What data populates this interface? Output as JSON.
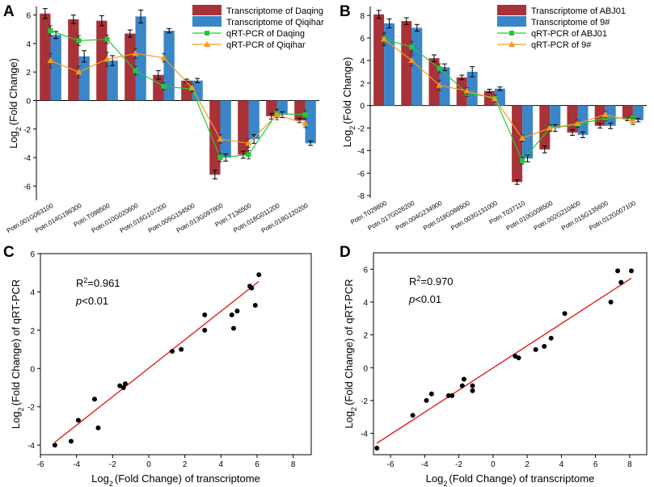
{
  "panels": {
    "A": {
      "letter": "A"
    },
    "B": {
      "letter": "B"
    },
    "C": {
      "letter": "C"
    },
    "D": {
      "letter": "D"
    }
  },
  "colors": {
    "transcriptome_red": "#a83238",
    "transcriptome_blue": "#3a86c8",
    "qrt_green": "#22c93a",
    "qrt_orange": "#f59a1e",
    "fit_line": "#e02020"
  },
  "chart_data": [
    {
      "id": "A",
      "type": "bar",
      "ylabel": "Log2 (Fold Change)",
      "ylabel_base": "Log",
      "ylabel_sub": "2",
      "ylabel_rest": "(Fold Change)",
      "ylim": [
        -7,
        6.6
      ],
      "yticks": [
        -6,
        -4,
        -2,
        0,
        2,
        4,
        6
      ],
      "categories": [
        "Potri.001G063100",
        "Potri.014G198300",
        "Potri.T098500",
        "Potri.010G020600",
        "Potri.016G107200",
        "Potri.005G154500",
        "Potri.013G097800",
        "Potri.T136500",
        "Potri.018G011200",
        "Potri.018G120200"
      ],
      "series": [
        {
          "name": "Transcriptome of Daqing",
          "kind": "bar",
          "color": "#a83238",
          "values": [
            6.1,
            5.7,
            5.6,
            4.7,
            1.8,
            1.4,
            -5.2,
            -3.8,
            -1.1,
            -1.4
          ],
          "errors": [
            0.35,
            0.3,
            0.35,
            0.25,
            0.3,
            0.1,
            0.3,
            0.25,
            0.2,
            0.15
          ]
        },
        {
          "name": "Transcriptome of Qiqihar",
          "kind": "bar",
          "color": "#3a86c8",
          "values": [
            4.6,
            3.1,
            2.8,
            5.9,
            4.9,
            1.4,
            -4.0,
            -2.7,
            -1.0,
            -3.0
          ],
          "errors": [
            0.25,
            0.4,
            0.35,
            0.45,
            0.15,
            0.15,
            0.25,
            0.3,
            0.2,
            0.15
          ]
        },
        {
          "name": "qRT-PCR of Daqing",
          "kind": "line",
          "color": "#22c93a",
          "marker": "square",
          "values": [
            4.9,
            4.2,
            4.3,
            2.1,
            1.0,
            0.8,
            -4.0,
            -3.8,
            -0.9,
            -1.0
          ],
          "errors": [
            0.35,
            0.35,
            0.3,
            0.3,
            0.25,
            0.2,
            0.3,
            0.3,
            0.3,
            0.3
          ]
        },
        {
          "name": "qRT-PCR of Qiqihar",
          "kind": "line",
          "color": "#f59a1e",
          "marker": "triangle",
          "values": [
            2.8,
            2.0,
            2.9,
            3.3,
            3.0,
            0.9,
            -2.7,
            -3.0,
            -1.0,
            -1.6
          ],
          "errors": [
            0.5,
            0.4,
            0.5,
            0.35,
            0.3,
            0.25,
            0.3,
            0.3,
            0.35,
            0.3
          ]
        }
      ]
    },
    {
      "id": "B",
      "type": "bar",
      "ylabel": "Log2 (Fold Change)",
      "ylabel_base": "Log",
      "ylabel_sub": "2",
      "ylabel_rest": "(Fold Change)",
      "ylim": [
        -8.2,
        8.8
      ],
      "yticks": [
        -8,
        -6,
        -4,
        -2,
        0,
        2,
        4,
        6,
        8
      ],
      "categories": [
        "Potri.T029800",
        "Potri.017G028200",
        "Potri.004G234900",
        "Potri.018G098500",
        "Potri.003G131000",
        "Potri.T037110",
        "Potri.010G008500",
        "Potri.002G210400",
        "Potri.015G135600",
        "Potri.012G007100"
      ],
      "series": [
        {
          "name": "Transcriptome of ABJ01",
          "kind": "bar",
          "color": "#a83238",
          "values": [
            8.1,
            7.5,
            4.2,
            2.5,
            1.3,
            -6.8,
            -3.9,
            -2.4,
            -1.8,
            -1.2
          ],
          "errors": [
            0.35,
            0.3,
            0.3,
            0.2,
            0.15,
            0.2,
            0.3,
            0.25,
            0.2,
            0.15
          ]
        },
        {
          "name": "Transcriptome of 9#",
          "kind": "bar",
          "color": "#3a86c8",
          "values": [
            7.3,
            6.9,
            3.4,
            3.0,
            1.5,
            -4.7,
            -2.0,
            -2.6,
            -1.8,
            -1.3
          ],
          "errors": [
            0.4,
            0.3,
            0.3,
            0.45,
            0.15,
            0.3,
            0.3,
            0.25,
            0.25,
            0.15
          ]
        },
        {
          "name": "qRT-PCR of ABJ01",
          "kind": "line",
          "color": "#22c93a",
          "marker": "square",
          "values": [
            5.9,
            5.2,
            3.3,
            1.1,
            0.7,
            -4.9,
            -2.0,
            -1.7,
            -1.1,
            -1.1
          ],
          "errors": [
            0.5,
            0.5,
            0.4,
            0.3,
            0.25,
            0.3,
            0.25,
            0.25,
            0.25,
            0.2
          ]
        },
        {
          "name": "qRT-PCR of 9#",
          "kind": "line",
          "color": "#f59a1e",
          "marker": "triangle",
          "values": [
            5.9,
            4.0,
            1.8,
            1.3,
            0.6,
            -2.9,
            -2.0,
            -1.6,
            -0.8,
            -1.4
          ],
          "errors": [
            0.6,
            0.5,
            0.45,
            0.3,
            0.3,
            0.3,
            0.3,
            0.3,
            0.3,
            0.3
          ]
        }
      ]
    },
    {
      "id": "C",
      "type": "scatter",
      "xlabel": "Log2 (Fold Change) of transcriptome",
      "xlabel_base": "Log",
      "xlabel_sub": "2",
      "xlabel_rest": "(Fold Change)   of transcriptome",
      "ylabel": "Log2 (Fold Change) of qRT-PCR",
      "ylabel_base": "Log",
      "ylabel_sub": "2",
      "ylabel_rest": "(Fold Change)   of qRT-PCR",
      "xlim": [
        -6,
        9
      ],
      "ylim": [
        -4.5,
        6
      ],
      "xticks": [
        -6,
        -4,
        -2,
        0,
        2,
        4,
        6,
        8
      ],
      "yticks": [
        -4,
        -2,
        0,
        2,
        4,
        6
      ],
      "r2_base": "R",
      "r2_sup": "2",
      "r2_value": "=0.961",
      "p_italic": "p",
      "p_rest": "<0.01",
      "points": [
        [
          -5.2,
          -4.0
        ],
        [
          -4.3,
          -3.8
        ],
        [
          -3.9,
          -2.7
        ],
        [
          -3.0,
          -1.6
        ],
        [
          -2.8,
          -3.1
        ],
        [
          -1.6,
          -0.9
        ],
        [
          -1.4,
          -1.0
        ],
        [
          -1.3,
          -0.8
        ],
        [
          1.3,
          0.9
        ],
        [
          1.8,
          1.0
        ],
        [
          3.1,
          2.0
        ],
        [
          3.1,
          2.8
        ],
        [
          4.6,
          2.8
        ],
        [
          4.7,
          2.1
        ],
        [
          4.9,
          3.0
        ],
        [
          5.6,
          4.3
        ],
        [
          5.7,
          4.2
        ],
        [
          5.9,
          3.3
        ],
        [
          6.1,
          4.9
        ]
      ],
      "fit": {
        "x": [
          -5.2,
          6.1
        ],
        "y": [
          -3.85,
          4.55
        ]
      }
    },
    {
      "id": "D",
      "type": "scatter",
      "xlabel": "Log2 (Fold Change) of transcriptome",
      "xlabel_base": "Log",
      "xlabel_sub": "2",
      "xlabel_rest": "(Fold Change)   of transcriptome",
      "ylabel": "Log2 (Fold Change) of qRT-PCR",
      "ylabel_base": "Log",
      "ylabel_sub": "2",
      "ylabel_rest": "(Fold Change)   of qRT-PCR",
      "xlim": [
        -7,
        9
      ],
      "ylim": [
        -5.3,
        7
      ],
      "xticks": [
        -6,
        -4,
        -2,
        0,
        2,
        4,
        6,
        8
      ],
      "yticks": [
        -4,
        -2,
        0,
        2,
        4,
        6
      ],
      "r2_base": "R",
      "r2_sup": "2",
      "r2_value": "=0.970",
      "p_italic": "p",
      "p_rest": "<0.01",
      "points": [
        [
          -6.8,
          -4.9
        ],
        [
          -4.7,
          -2.9
        ],
        [
          -3.9,
          -2.0
        ],
        [
          -3.6,
          -1.6
        ],
        [
          -2.4,
          -1.7
        ],
        [
          -2.6,
          -1.7
        ],
        [
          -1.8,
          -1.1
        ],
        [
          -1.7,
          -0.7
        ],
        [
          -1.2,
          -1.1
        ],
        [
          -1.2,
          -1.4
        ],
        [
          1.3,
          0.7
        ],
        [
          1.5,
          0.6
        ],
        [
          2.5,
          1.1
        ],
        [
          3.0,
          1.3
        ],
        [
          3.4,
          1.8
        ],
        [
          4.2,
          3.3
        ],
        [
          6.9,
          4.0
        ],
        [
          7.3,
          5.9
        ],
        [
          7.5,
          5.2
        ],
        [
          8.1,
          5.9
        ]
      ],
      "fit": {
        "x": [
          -6.8,
          8.1
        ],
        "y": [
          -4.6,
          5.45
        ]
      }
    }
  ]
}
